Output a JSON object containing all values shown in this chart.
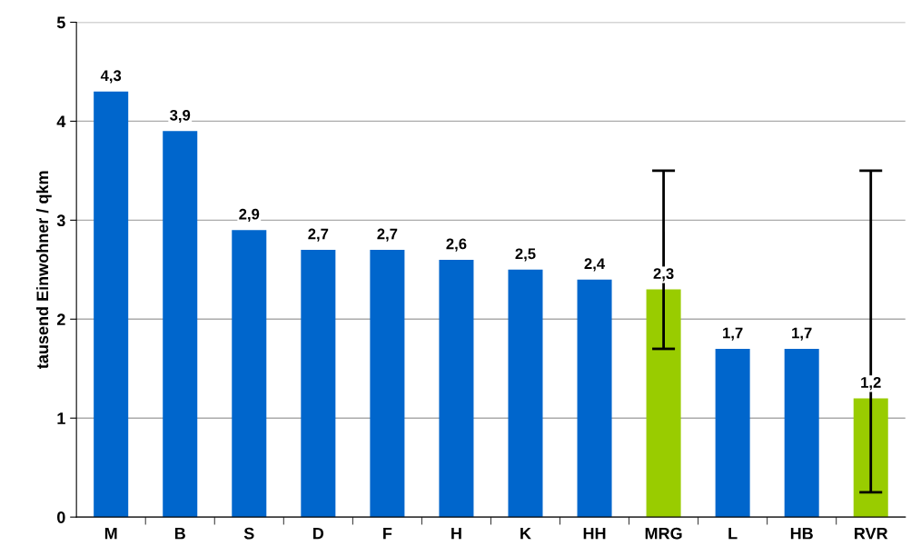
{
  "chart_data": {
    "type": "bar",
    "ylabel": "tausend Einwohner / qkm",
    "categories": [
      "M",
      "B",
      "S",
      "D",
      "F",
      "H",
      "K",
      "HH",
      "MRG",
      "L",
      "HB",
      "RVR"
    ],
    "values": [
      4.3,
      3.9,
      2.9,
      2.7,
      2.7,
      2.6,
      2.5,
      2.4,
      2.3,
      1.7,
      1.7,
      1.2
    ],
    "colors": [
      "#0066cc",
      "#0066cc",
      "#0066cc",
      "#0066cc",
      "#0066cc",
      "#0066cc",
      "#0066cc",
      "#0066cc",
      "#99cc00",
      "#0066cc",
      "#0066cc",
      "#99cc00"
    ],
    "value_labels": [
      "4,3",
      "3,9",
      "2,9",
      "2,7",
      "2,7",
      "2,6",
      "2,5",
      "2,4",
      "2,3",
      "1,7",
      "1,7",
      "1,2"
    ],
    "errors": [
      null,
      null,
      null,
      null,
      null,
      null,
      null,
      null,
      [
        1.7,
        3.5
      ],
      null,
      null,
      [
        0.25,
        3.5
      ]
    ],
    "ylim": [
      0,
      5
    ],
    "yticks": [
      0,
      1,
      2,
      3,
      4,
      5
    ],
    "grid": "y"
  }
}
